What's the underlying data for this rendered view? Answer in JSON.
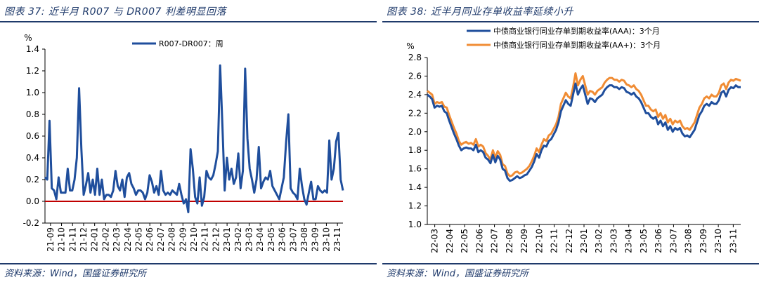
{
  "figures": [
    {
      "title": "图表 37: 近半月 R007 与 DR007 利差明显回落",
      "source": "资料来源：Wind，国盛证券研究所"
    },
    {
      "title": "图表 38: 近半月同业存单收益率延续小升",
      "source": "资料来源：Wind，国盛证券研究所"
    }
  ],
  "colors": {
    "line_primary": "#1f4e9c",
    "line_secondary": "#f08c34",
    "zero_line": "#c00000",
    "frame": "#1f3a6b"
  },
  "chart_data": [
    {
      "type": "line",
      "title": "",
      "ylabel": "%",
      "xlabel": "",
      "ylim": [
        -0.2,
        1.4
      ],
      "yticks": [
        -0.2,
        0.0,
        0.2,
        0.4,
        0.6,
        0.8,
        1.0,
        1.2,
        1.4
      ],
      "ytick_labels": [
        "-0.2",
        "0.0",
        "0.2",
        "0.4",
        "0.6",
        "0.8",
        "1.0",
        "1.2",
        "1.4"
      ],
      "x_tick_labels": [
        "21-09",
        "21-10",
        "21-11",
        "21-12",
        "22-01",
        "22-02",
        "22-03",
        "22-04",
        "22-05",
        "22-06",
        "22-07",
        "22-08",
        "22-09",
        "22-10",
        "22-11",
        "22-12",
        "23-01",
        "23-02",
        "23-03",
        "23-04",
        "23-05",
        "23-06",
        "23-07",
        "23-08",
        "23-09",
        "23-10",
        "23-11"
      ],
      "legend": {
        "position": "top-center"
      },
      "reference_line": {
        "y": 0.0,
        "color": "#c00000"
      },
      "series": [
        {
          "name": "R007-DR007：周",
          "color": "#1f4e9c",
          "values": [
            0.22,
            0.2,
            0.74,
            0.12,
            0.1,
            0.02,
            0.22,
            0.08,
            0.08,
            0.08,
            0.3,
            0.1,
            0.1,
            0.2,
            0.4,
            1.04,
            0.48,
            0.06,
            0.15,
            0.26,
            0.08,
            0.2,
            0.06,
            0.3,
            0.06,
            0.2,
            0.02,
            0.06,
            0.06,
            0.04,
            0.1,
            0.28,
            0.14,
            0.1,
            0.2,
            0.04,
            0.22,
            0.26,
            0.16,
            0.12,
            0.06,
            0.1,
            0.1,
            0.08,
            0.02,
            0.08,
            0.24,
            0.18,
            0.08,
            0.14,
            0.06,
            0.28,
            0.1,
            0.06,
            0.08,
            0.06,
            0.1,
            0.08,
            0.06,
            0.16,
            0.06,
            -0.02,
            0.02,
            -0.1,
            0.48,
            0.3,
            0.04,
            -0.02,
            0.22,
            -0.04,
            0.04,
            0.28,
            0.22,
            0.2,
            0.24,
            0.34,
            0.46,
            1.25,
            0.7,
            0.1,
            0.4,
            0.2,
            0.3,
            0.16,
            0.22,
            0.44,
            0.12,
            0.28,
            1.22,
            0.58,
            0.3,
            0.2,
            0.08,
            0.2,
            0.5,
            0.12,
            0.18,
            0.22,
            0.2,
            0.28,
            0.14,
            0.1,
            0.06,
            0.02,
            0.12,
            0.22,
            0.54,
            0.8,
            0.12,
            0.08,
            0.06,
            0.02,
            0.3,
            0.14,
            0.02,
            -0.03,
            0.08,
            0.18,
            0.02,
            0.02,
            0.14,
            0.1,
            0.08,
            0.1,
            0.08,
            0.56,
            0.2,
            0.3,
            0.55,
            0.63,
            0.2,
            0.1
          ]
        }
      ]
    },
    {
      "type": "line",
      "title": "",
      "ylabel": "%",
      "xlabel": "",
      "ylim": [
        1.0,
        2.8
      ],
      "yticks": [
        1.0,
        1.2,
        1.4,
        1.6,
        1.8,
        2.0,
        2.2,
        2.4,
        2.6,
        2.8
      ],
      "ytick_labels": [
        "1.0",
        "1.2",
        "1.4",
        "1.6",
        "1.8",
        "2.0",
        "2.2",
        "2.4",
        "2.6",
        "2.8"
      ],
      "x_tick_labels": [
        "22-03",
        "22-04",
        "22-05",
        "22-06",
        "22-07",
        "22-08",
        "22-09",
        "22-10",
        "22-11",
        "22-12",
        "23-01",
        "23-02",
        "23-03",
        "23-04",
        "23-05",
        "23-06",
        "23-07",
        "23-08",
        "23-09",
        "23-10",
        "23-11"
      ],
      "legend": {
        "position": "top-left"
      },
      "series": [
        {
          "name": "中债商业银行同业存单到期收益率(AAA)：3个月",
          "color": "#1f4e9c",
          "values": [
            2.4,
            2.38,
            2.35,
            2.26,
            2.28,
            2.27,
            2.28,
            2.22,
            2.2,
            2.12,
            2.05,
            1.98,
            1.92,
            1.85,
            1.8,
            1.82,
            1.83,
            1.82,
            1.82,
            1.8,
            1.86,
            1.78,
            1.8,
            1.78,
            1.72,
            1.7,
            1.66,
            1.75,
            1.67,
            1.74,
            1.7,
            1.6,
            1.58,
            1.5,
            1.47,
            1.48,
            1.5,
            1.52,
            1.5,
            1.51,
            1.53,
            1.54,
            1.58,
            1.62,
            1.68,
            1.76,
            1.72,
            1.8,
            1.85,
            1.84,
            1.9,
            1.92,
            1.97,
            2.02,
            2.1,
            2.22,
            2.28,
            2.34,
            2.3,
            2.28,
            2.4,
            2.52,
            2.4,
            2.46,
            2.5,
            2.4,
            2.3,
            2.36,
            2.35,
            2.32,
            2.36,
            2.38,
            2.4,
            2.45,
            2.48,
            2.5,
            2.5,
            2.48,
            2.48,
            2.46,
            2.48,
            2.47,
            2.43,
            2.42,
            2.4,
            2.42,
            2.38,
            2.36,
            2.32,
            2.26,
            2.2,
            2.2,
            2.16,
            2.14,
            2.16,
            2.08,
            2.12,
            2.06,
            2.1,
            2.02,
            2.06,
            2.0,
            2.04,
            2.02,
            2.04,
            1.98,
            1.95,
            1.96,
            1.94,
            1.98,
            2.02,
            2.1,
            2.18,
            2.22,
            2.28,
            2.3,
            2.28,
            2.32,
            2.3,
            2.3,
            2.34,
            2.42,
            2.44,
            2.38,
            2.45,
            2.48,
            2.47,
            2.5,
            2.48,
            2.48
          ]
        },
        {
          "name": "中债商业银行同业存单到期收益率(AA+)：3个月",
          "color": "#f08c34",
          "values": [
            2.44,
            2.42,
            2.4,
            2.3,
            2.32,
            2.31,
            2.32,
            2.27,
            2.26,
            2.18,
            2.11,
            2.04,
            1.98,
            1.9,
            1.86,
            1.88,
            1.89,
            1.87,
            1.88,
            1.86,
            1.92,
            1.84,
            1.86,
            1.84,
            1.77,
            1.74,
            1.7,
            1.8,
            1.72,
            1.79,
            1.75,
            1.65,
            1.63,
            1.55,
            1.52,
            1.53,
            1.56,
            1.57,
            1.55,
            1.56,
            1.58,
            1.6,
            1.63,
            1.68,
            1.74,
            1.82,
            1.78,
            1.86,
            1.92,
            1.9,
            1.96,
            1.98,
            2.03,
            2.08,
            2.16,
            2.3,
            2.36,
            2.42,
            2.38,
            2.36,
            2.48,
            2.63,
            2.5,
            2.56,
            2.6,
            2.5,
            2.4,
            2.44,
            2.43,
            2.4,
            2.44,
            2.46,
            2.48,
            2.53,
            2.56,
            2.58,
            2.58,
            2.56,
            2.56,
            2.54,
            2.56,
            2.55,
            2.51,
            2.5,
            2.48,
            2.5,
            2.46,
            2.44,
            2.4,
            2.34,
            2.28,
            2.28,
            2.24,
            2.22,
            2.24,
            2.16,
            2.2,
            2.14,
            2.18,
            2.1,
            2.14,
            2.08,
            2.12,
            2.1,
            2.12,
            2.06,
            2.03,
            2.04,
            2.02,
            2.06,
            2.1,
            2.18,
            2.26,
            2.3,
            2.36,
            2.38,
            2.36,
            2.4,
            2.38,
            2.38,
            2.42,
            2.5,
            2.52,
            2.46,
            2.53,
            2.56,
            2.55,
            2.57,
            2.56,
            2.55
          ]
        }
      ]
    }
  ]
}
